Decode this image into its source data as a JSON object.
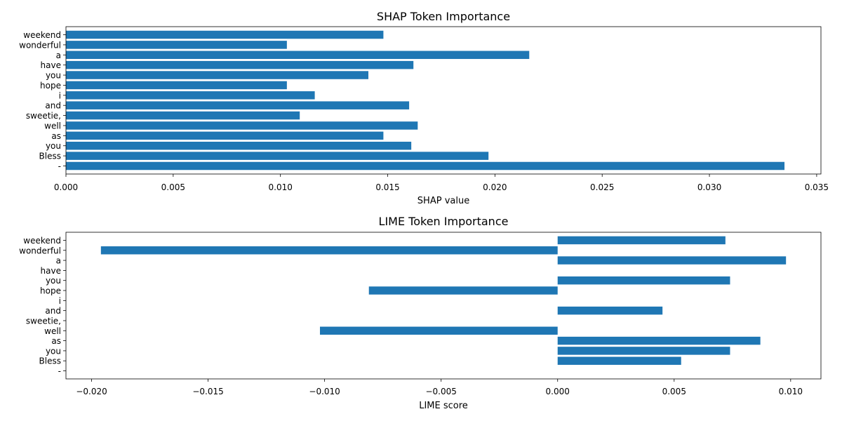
{
  "chart_data": [
    {
      "type": "bar",
      "orientation": "horizontal",
      "title": "SHAP Token Importance",
      "xlabel": "SHAP value",
      "ylabel": "",
      "categories": [
        "weekend",
        "wonderful",
        "a",
        "have",
        "you",
        "hope",
        "i",
        "and",
        "sweetie,",
        "well",
        "as",
        "you",
        "Bless",
        "-"
      ],
      "values": [
        0.0148,
        0.0103,
        0.0216,
        0.0162,
        0.0141,
        0.0103,
        0.0116,
        0.016,
        0.0109,
        0.0164,
        0.0148,
        0.0161,
        0.0197,
        0.0335
      ],
      "xlim": [
        0.0,
        0.0352
      ],
      "xticks": [
        0.0,
        0.005,
        0.01,
        0.015,
        0.02,
        0.025,
        0.03,
        0.035
      ],
      "xtick_labels": [
        "0.000",
        "0.005",
        "0.010",
        "0.015",
        "0.020",
        "0.025",
        "0.030",
        "0.035"
      ],
      "grid": false,
      "bar_color": "#1f77b4"
    },
    {
      "type": "bar",
      "orientation": "horizontal",
      "title": "LIME Token Importance",
      "xlabel": "LIME score",
      "ylabel": "",
      "categories": [
        "weekend",
        "wonderful",
        "a",
        "have",
        "you",
        "hope",
        "i",
        "and",
        "sweetie,",
        "well",
        "as",
        "you",
        "Bless",
        "-"
      ],
      "values": [
        0.0072,
        -0.0196,
        0.0098,
        0.0,
        0.0074,
        -0.0081,
        0.0,
        0.0045,
        0.0,
        -0.0102,
        0.0087,
        0.0074,
        0.0053,
        0.0
      ],
      "xlim": [
        -0.0211,
        0.0113
      ],
      "xticks": [
        -0.02,
        -0.015,
        -0.01,
        -0.005,
        0.0,
        0.005,
        0.01
      ],
      "xtick_labels": [
        "−0.020",
        "−0.015",
        "−0.010",
        "−0.005",
        "0.000",
        "0.005",
        "0.010"
      ],
      "grid": false,
      "bar_color": "#1f77b4"
    }
  ]
}
